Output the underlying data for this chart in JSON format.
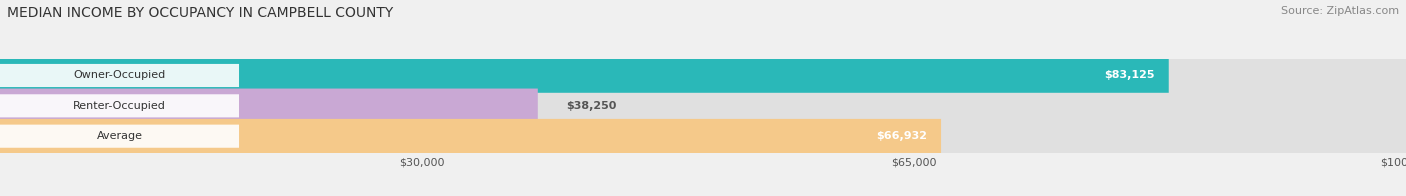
{
  "title": "MEDIAN INCOME BY OCCUPANCY IN CAMPBELL COUNTY",
  "source": "Source: ZipAtlas.com",
  "categories": [
    "Owner-Occupied",
    "Renter-Occupied",
    "Average"
  ],
  "values": [
    83125,
    38250,
    66932
  ],
  "bar_colors": [
    "#2ab8b8",
    "#c9a8d4",
    "#f5c98a"
  ],
  "label_colors": [
    "#ffffff",
    "#555555",
    "#555555"
  ],
  "value_labels": [
    "$83,125",
    "$38,250",
    "$66,932"
  ],
  "xlim": [
    0,
    100000
  ],
  "xticks": [
    30000,
    65000,
    100000
  ],
  "xtick_labels": [
    "$30,000",
    "$65,000",
    "$100,000"
  ],
  "background_color": "#f0f0f0",
  "bar_background_color": "#e0e0e0",
  "title_fontsize": 10,
  "source_fontsize": 8,
  "bar_height": 0.6,
  "bar_label_fontsize": 8,
  "value_label_fontsize": 8,
  "tick_fontsize": 8
}
